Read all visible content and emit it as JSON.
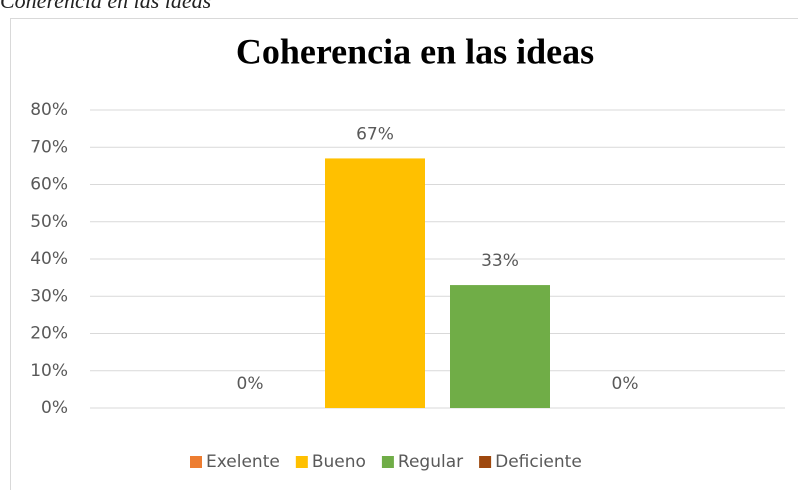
{
  "caption": "Coherencia en las ideas",
  "chart_data": {
    "type": "bar",
    "title": "Coherencia en las ideas",
    "series": [
      {
        "name": "Exelente",
        "color": "#ED7D31",
        "values": [
          0
        ],
        "value_labels": [
          "0%"
        ]
      },
      {
        "name": "Bueno",
        "color": "#FFC000",
        "values": [
          67
        ],
        "value_labels": [
          "67%"
        ]
      },
      {
        "name": "Regular",
        "color": "#70AD47",
        "values": [
          33
        ],
        "value_labels": [
          "33%"
        ]
      },
      {
        "name": "Deficiente",
        "color": "#9E480E",
        "values": [
          0
        ],
        "value_labels": [
          "0%"
        ]
      }
    ],
    "ylim": [
      0,
      80
    ],
    "yticks": [
      {
        "value": 0,
        "label": "0%"
      },
      {
        "value": 10,
        "label": "10%"
      },
      {
        "value": 20,
        "label": "20%"
      },
      {
        "value": 30,
        "label": "30%"
      },
      {
        "value": 40,
        "label": "40%"
      },
      {
        "value": 50,
        "label": "50%"
      },
      {
        "value": 60,
        "label": "60%"
      },
      {
        "value": 70,
        "label": "70%"
      },
      {
        "value": 80,
        "label": "80%"
      }
    ],
    "grid": true,
    "legend": "bottom"
  }
}
